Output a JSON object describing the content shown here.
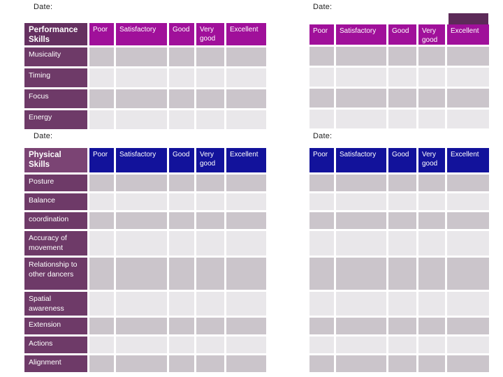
{
  "page": {
    "background": "#ffffff"
  },
  "colors": {
    "magenta_header": "#a0109a",
    "navy_header": "#12129b",
    "performance_label_bg": "#653060",
    "physical_label_bg": "#7b4474",
    "row_label_bg": "#6e3a68",
    "decoration": "#5c2a58",
    "cell_dark": "#cbc5cb",
    "cell_light": "#e9e7ea",
    "header_text": "#ffffff",
    "date_text": "#1f1f1f"
  },
  "performance_section": {
    "date_left": "Date:",
    "date_right": "Date:",
    "table_title": "Performance Skills",
    "rating_columns": [
      "Poor",
      "Satisfactory",
      "Good",
      "Very good",
      "Excellent"
    ],
    "skill_rows": [
      "Musicality",
      "Timing",
      "Focus",
      "Energy"
    ]
  },
  "physical_section": {
    "date_left": "Date:",
    "date_right": "Date:",
    "table_title": "Physical Skills",
    "rating_columns": [
      "Poor",
      "Satisfactory",
      "Good",
      "Very good",
      "Excellent"
    ],
    "skill_rows": [
      "Posture",
      "Balance",
      "coordination",
      "Accuracy of movement",
      "Relationship to other dancers",
      "Spatial awareness",
      "Extension",
      "Actions",
      "Alignment"
    ]
  }
}
